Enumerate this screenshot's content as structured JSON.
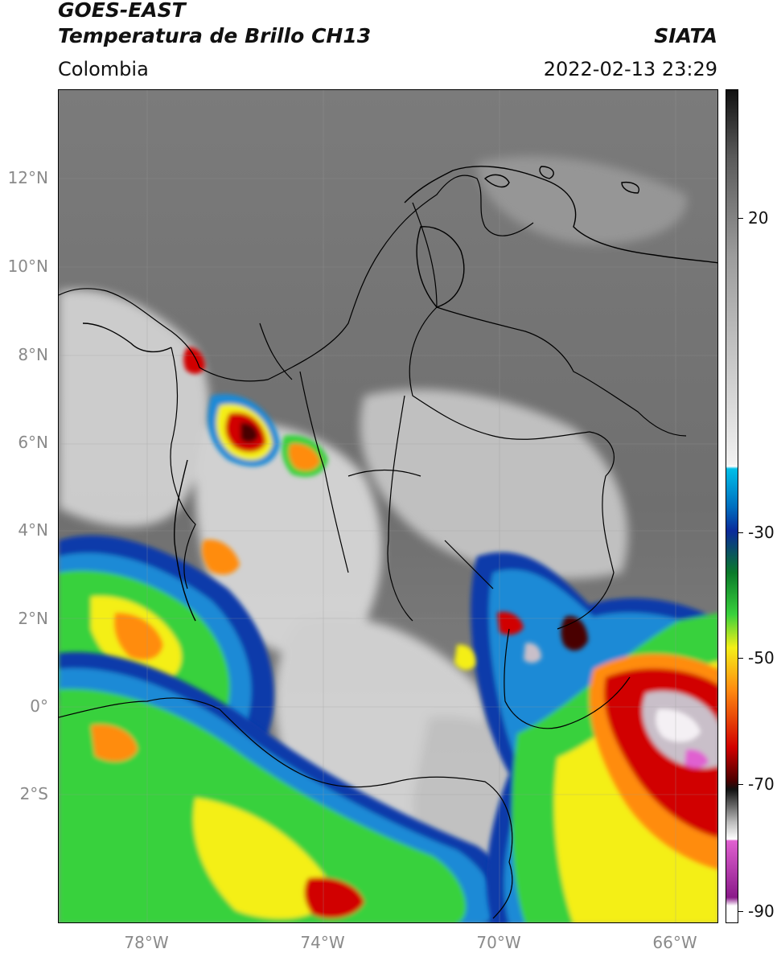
{
  "header": {
    "title_line1": "GOES-EAST",
    "title_line2": "Temperatura de Brillo CH13",
    "region": "Colombia",
    "organization": "SIATA",
    "timestamp": "2022-02-13 23:29"
  },
  "axes": {
    "latitude_labels": [
      "12°N",
      "10°N",
      "8°N",
      "6°N",
      "4°N",
      "2°N",
      "0°",
      "2°S"
    ],
    "longitude_labels": [
      "78°W",
      "74°W",
      "70°W",
      "66°W"
    ]
  },
  "colorbar": {
    "tick_labels": [
      "20",
      "-30",
      "-50",
      "-70",
      "-90"
    ],
    "colors": {
      "warm_black": "#111111",
      "cloud_white": "#f2f2f2",
      "cyan": "#00bfe8",
      "blue": "#0a2a9a",
      "green": "#39d13c",
      "yellow": "#f4ef18",
      "orange": "#ff8c10",
      "red": "#d10000",
      "dark_red": "#4a0000",
      "magenta": "#e060d0",
      "purple": "#8a1a8a"
    }
  },
  "overlays": {
    "boundary_color": "#000000",
    "gridline_color": "#9a9a9a"
  }
}
